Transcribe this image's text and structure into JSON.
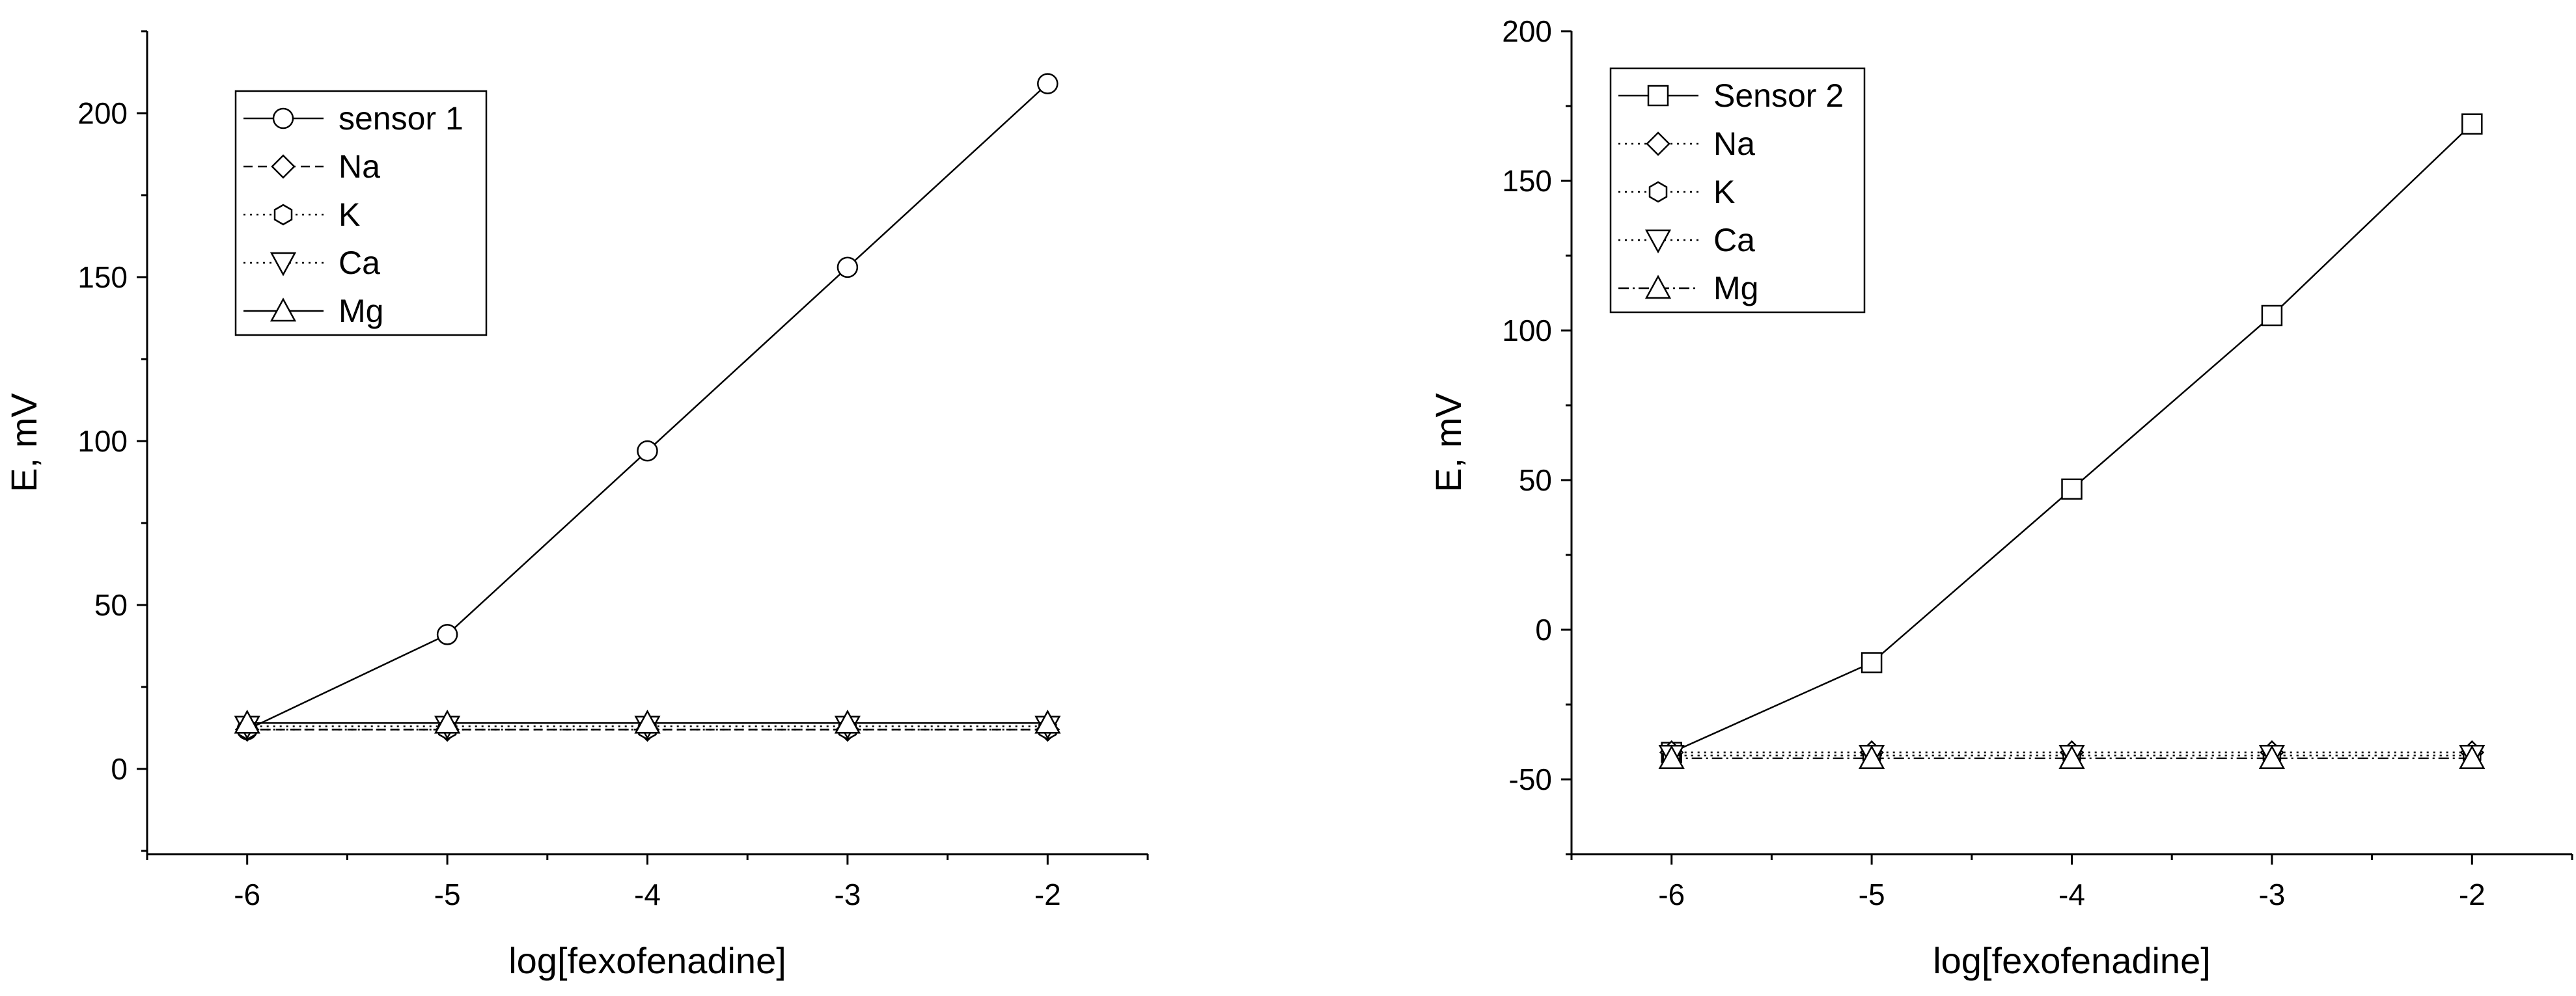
{
  "chart_data": [
    {
      "type": "line",
      "xlabel": "log[fexofenadine]",
      "ylabel": "E, mV",
      "xlim": [
        -6.5,
        -1.5
      ],
      "ylim": [
        -26,
        225
      ],
      "x_ticks": [
        -6,
        -5,
        -4,
        -3,
        -2
      ],
      "y_ticks": [
        0,
        50,
        100,
        150,
        200
      ],
      "x_tick_labels": [
        "-6",
        "-5",
        "-4",
        "-3",
        "-2"
      ],
      "y_tick_labels": [
        "0",
        "50",
        "100",
        "150",
        "200"
      ],
      "legend_position": "top-left",
      "x": [
        -6,
        -5,
        -4,
        -3,
        -2
      ],
      "series": [
        {
          "name": "sensor 1",
          "marker": "circle",
          "dash": "solid",
          "values": [
            12,
            41,
            97,
            153,
            209
          ]
        },
        {
          "name": "Na",
          "marker": "diamond",
          "dash": "dashed",
          "values": [
            12,
            12,
            12,
            12,
            12
          ]
        },
        {
          "name": "K",
          "marker": "hexagon",
          "dash": "dotted",
          "values": [
            12,
            12,
            12,
            12,
            12
          ]
        },
        {
          "name": "Ca",
          "marker": "triangle-down",
          "dash": "dotted",
          "values": [
            13,
            13,
            13,
            13,
            13
          ]
        },
        {
          "name": "Mg",
          "marker": "triangle-up",
          "dash": "solid",
          "values": [
            14,
            14,
            14,
            14,
            14
          ]
        }
      ]
    },
    {
      "type": "line",
      "xlabel": "log[fexofenadine]",
      "ylabel": "E, mV",
      "xlim": [
        -6.5,
        -1.5
      ],
      "ylim": [
        -75,
        200
      ],
      "x_ticks": [
        -6,
        -5,
        -4,
        -3,
        -2
      ],
      "y_ticks": [
        -50,
        0,
        50,
        100,
        150,
        200
      ],
      "x_tick_labels": [
        "-6",
        "-5",
        "-4",
        "-3",
        "-2"
      ],
      "y_tick_labels": [
        "-50",
        "0",
        "50",
        "100",
        "150",
        "200"
      ],
      "legend_position": "top-left",
      "x": [
        -6,
        -5,
        -4,
        -3,
        -2
      ],
      "series": [
        {
          "name": "Sensor 2",
          "marker": "square",
          "dash": "solid",
          "values": [
            -41,
            -11,
            47,
            105,
            169
          ]
        },
        {
          "name": "Na",
          "marker": "diamond",
          "dash": "dotted",
          "values": [
            -41,
            -41,
            -41,
            -41,
            -41
          ]
        },
        {
          "name": "K",
          "marker": "hexagon",
          "dash": "dotted",
          "values": [
            -42,
            -42,
            -42,
            -42,
            -42
          ]
        },
        {
          "name": "Ca",
          "marker": "triangle-down",
          "dash": "dotted",
          "values": [
            -42,
            -42,
            -42,
            -42,
            -42
          ]
        },
        {
          "name": "Mg",
          "marker": "triangle-up",
          "dash": "dashdot",
          "values": [
            -43,
            -43,
            -43,
            -43,
            -43
          ]
        }
      ]
    }
  ]
}
